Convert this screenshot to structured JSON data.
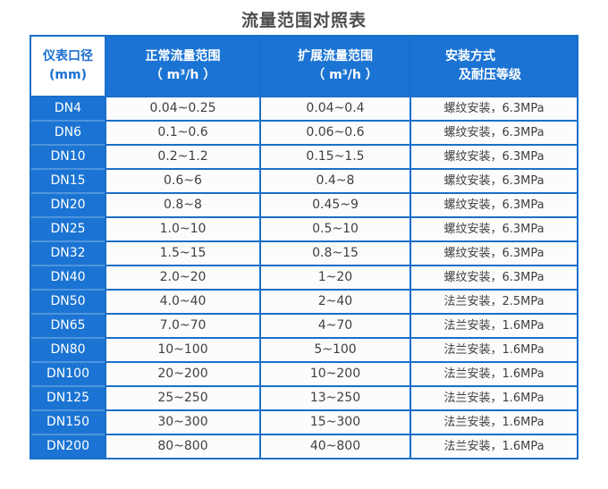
{
  "page": {
    "title": "流量范围对照表"
  },
  "colors": {
    "primary_blue": "#1b74d3",
    "border_blue": "#1a6fc9",
    "first_column_divider_blue": "#4f94dd",
    "header_corner_text_blue": "#1a6fd0",
    "cell_background": "#fcfcfc",
    "data_text": "#3f3f3f",
    "title_text": "#4d4d4d"
  },
  "table": {
    "headers": {
      "diameter": {
        "line1": "仪表口径",
        "line2": "(mm)"
      },
      "normal_range": {
        "line1": "正常流量范围",
        "unit": "（ m³/h ）"
      },
      "extended_range": {
        "line1": "扩展流量范围",
        "unit": "（ m³/h ）"
      },
      "installation": {
        "line1": "安装方式",
        "line2": "及耐压等级"
      }
    },
    "rows": [
      {
        "dn": "DN4",
        "normal": "0.04~0.25",
        "extended": "0.04~0.4",
        "install": "螺纹安装，6.3MPa"
      },
      {
        "dn": "DN6",
        "normal": "0.1~0.6",
        "extended": "0.06~0.6",
        "install": "螺纹安装，6.3MPa"
      },
      {
        "dn": "DN10",
        "normal": "0.2~1.2",
        "extended": "0.15~1.5",
        "install": "螺纹安装，6.3MPa"
      },
      {
        "dn": "DN15",
        "normal": "0.6~6",
        "extended": "0.4~8",
        "install": "螺纹安装，6.3MPa"
      },
      {
        "dn": "DN20",
        "normal": "0.8~8",
        "extended": "0.45~9",
        "install": "螺纹安装，6.3MPa"
      },
      {
        "dn": "DN25",
        "normal": "1.0~10",
        "extended": "0.5~10",
        "install": "螺纹安装，6.3MPa"
      },
      {
        "dn": "DN32",
        "normal": "1.5~15",
        "extended": "0.8~15",
        "install": "螺纹安装，6.3MPa"
      },
      {
        "dn": "DN40",
        "normal": "2.0~20",
        "extended": "1~20",
        "install": "螺纹安装，6.3MPa"
      },
      {
        "dn": "DN50",
        "normal": "4.0~40",
        "extended": "2~40",
        "install": "法兰安装，2.5MPa"
      },
      {
        "dn": "DN65",
        "normal": "7.0~70",
        "extended": "4~70",
        "install": "法兰安装，1.6MPa"
      },
      {
        "dn": "DN80",
        "normal": "10~100",
        "extended": "5~100",
        "install": "法兰安装，1.6MPa"
      },
      {
        "dn": "DN100",
        "normal": "20~200",
        "extended": "10~200",
        "install": "法兰安装，1.6MPa"
      },
      {
        "dn": "DN125",
        "normal": "25~250",
        "extended": "13~250",
        "install": "法兰安装，1.6MPa"
      },
      {
        "dn": "DN150",
        "normal": "30~300",
        "extended": "15~300",
        "install": "法兰安装，1.6MPa"
      },
      {
        "dn": "DN200",
        "normal": "80~800",
        "extended": "40~800",
        "install": "法兰安装，1.6MPa"
      }
    ]
  }
}
